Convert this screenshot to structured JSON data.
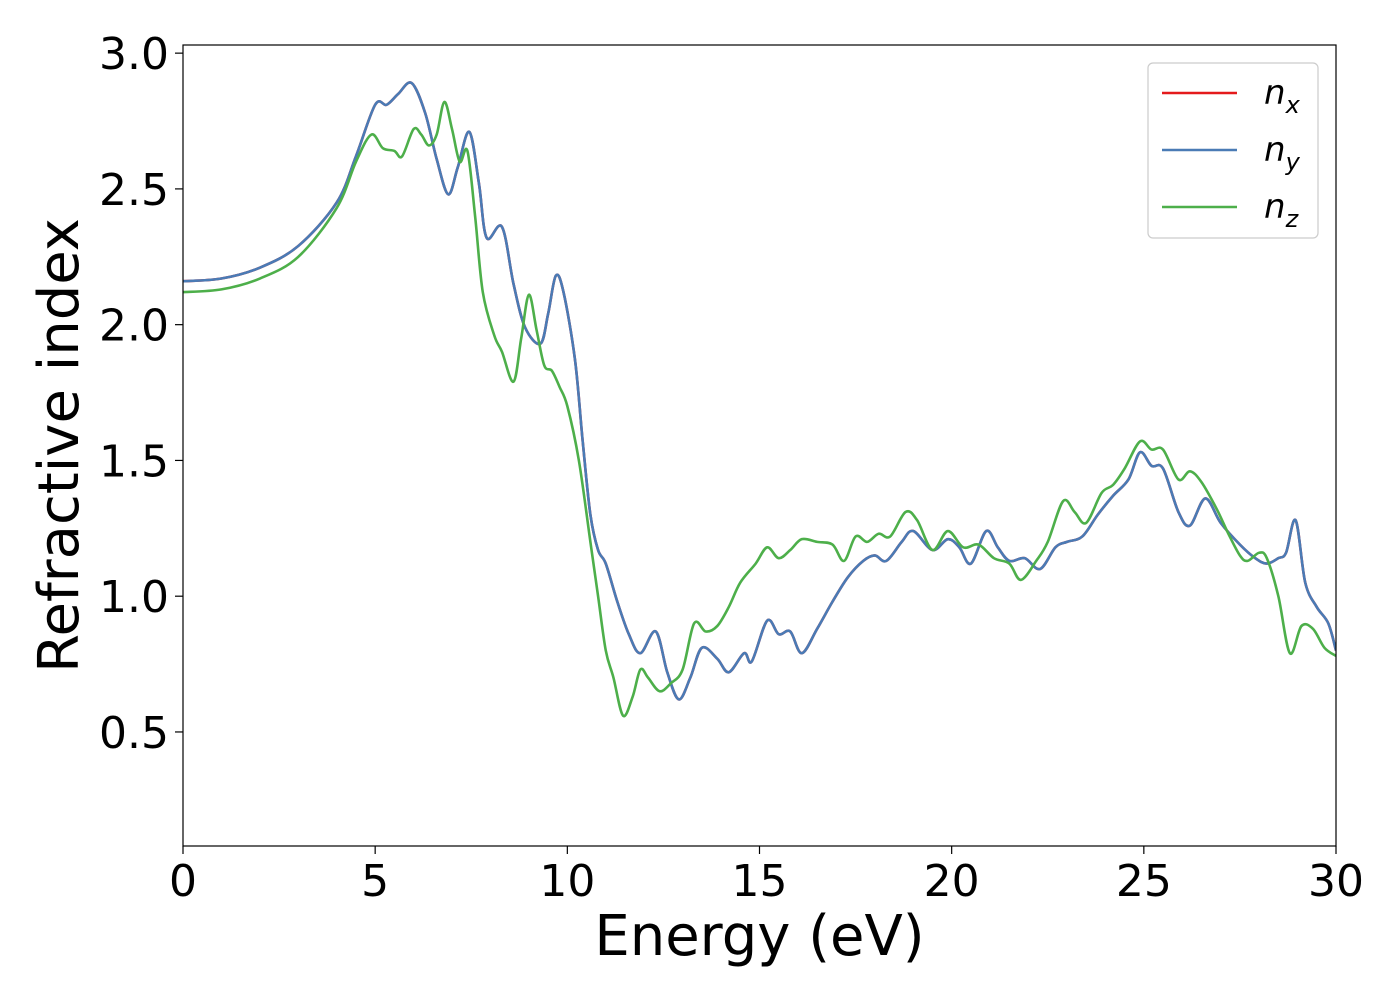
{
  "chart_data": {
    "type": "line",
    "title": "",
    "xlabel": "Energy (eV)",
    "ylabel": "Refractive index",
    "xlim": [
      0,
      30
    ],
    "ylim": [
      0.08,
      3.03
    ],
    "xticks": [
      0,
      5,
      10,
      15,
      20,
      25,
      30
    ],
    "yticks": [
      0.5,
      1.0,
      1.5,
      2.0,
      2.5,
      3.0
    ],
    "xtick_labels": [
      "0",
      "5",
      "10",
      "15",
      "20",
      "25",
      "30"
    ],
    "ytick_labels": [
      "0.5",
      "1.0",
      "1.5",
      "2.0",
      "2.5",
      "3.0"
    ],
    "grid": false,
    "legend_position": "top-right",
    "series": [
      {
        "name": "n",
        "subscript": "x",
        "color": "#e41a1c",
        "points": [
          [
            0,
            2.16
          ],
          [
            1,
            2.17
          ],
          [
            2,
            2.21
          ],
          [
            3,
            2.29
          ],
          [
            4,
            2.45
          ],
          [
            4.5,
            2.62
          ],
          [
            5,
            2.81
          ],
          [
            5.3,
            2.81
          ],
          [
            5.6,
            2.85
          ],
          [
            5.95,
            2.89
          ],
          [
            6.3,
            2.78
          ],
          [
            6.6,
            2.61
          ],
          [
            6.9,
            2.48
          ],
          [
            7.15,
            2.58
          ],
          [
            7.45,
            2.71
          ],
          [
            7.7,
            2.52
          ],
          [
            7.9,
            2.32
          ],
          [
            8.3,
            2.36
          ],
          [
            8.6,
            2.15
          ],
          [
            8.9,
            1.99
          ],
          [
            9.3,
            1.93
          ],
          [
            9.5,
            2.04
          ],
          [
            9.7,
            2.18
          ],
          [
            9.9,
            2.12
          ],
          [
            10.2,
            1.87
          ],
          [
            10.4,
            1.57
          ],
          [
            10.6,
            1.3
          ],
          [
            10.8,
            1.17
          ],
          [
            11.0,
            1.12
          ],
          [
            11.3,
            0.98
          ],
          [
            11.6,
            0.86
          ],
          [
            11.9,
            0.79
          ],
          [
            12.3,
            0.87
          ],
          [
            12.6,
            0.72
          ],
          [
            12.9,
            0.62
          ],
          [
            13.2,
            0.7
          ],
          [
            13.5,
            0.81
          ],
          [
            13.9,
            0.77
          ],
          [
            14.2,
            0.72
          ],
          [
            14.6,
            0.79
          ],
          [
            14.8,
            0.76
          ],
          [
            15.2,
            0.91
          ],
          [
            15.5,
            0.86
          ],
          [
            15.8,
            0.87
          ],
          [
            16.1,
            0.79
          ],
          [
            16.5,
            0.88
          ],
          [
            16.9,
            0.98
          ],
          [
            17.3,
            1.07
          ],
          [
            17.7,
            1.13
          ],
          [
            18.0,
            1.15
          ],
          [
            18.3,
            1.13
          ],
          [
            18.7,
            1.2
          ],
          [
            19.0,
            1.24
          ],
          [
            19.5,
            1.17
          ],
          [
            19.9,
            1.21
          ],
          [
            20.2,
            1.18
          ],
          [
            20.5,
            1.12
          ],
          [
            20.9,
            1.24
          ],
          [
            21.2,
            1.18
          ],
          [
            21.5,
            1.13
          ],
          [
            21.9,
            1.14
          ],
          [
            22.3,
            1.1
          ],
          [
            22.7,
            1.18
          ],
          [
            23.0,
            1.2
          ],
          [
            23.4,
            1.22
          ],
          [
            23.8,
            1.3
          ],
          [
            24.2,
            1.37
          ],
          [
            24.6,
            1.43
          ],
          [
            24.9,
            1.53
          ],
          [
            25.2,
            1.48
          ],
          [
            25.5,
            1.47
          ],
          [
            25.9,
            1.31
          ],
          [
            26.2,
            1.26
          ],
          [
            26.6,
            1.36
          ],
          [
            27.0,
            1.27
          ],
          [
            27.5,
            1.19
          ],
          [
            27.9,
            1.14
          ],
          [
            28.2,
            1.12
          ],
          [
            28.5,
            1.14
          ],
          [
            28.7,
            1.16
          ],
          [
            28.95,
            1.28
          ],
          [
            29.2,
            1.05
          ],
          [
            29.5,
            0.96
          ],
          [
            29.8,
            0.9
          ],
          [
            30,
            0.8
          ]
        ]
      },
      {
        "name": "n",
        "subscript": "y",
        "color": "#4a7bb5",
        "points": [
          [
            0,
            2.16
          ],
          [
            1,
            2.17
          ],
          [
            2,
            2.21
          ],
          [
            3,
            2.29
          ],
          [
            4,
            2.45
          ],
          [
            4.5,
            2.62
          ],
          [
            5,
            2.81
          ],
          [
            5.3,
            2.81
          ],
          [
            5.6,
            2.85
          ],
          [
            5.95,
            2.89
          ],
          [
            6.3,
            2.78
          ],
          [
            6.6,
            2.61
          ],
          [
            6.9,
            2.48
          ],
          [
            7.15,
            2.58
          ],
          [
            7.45,
            2.71
          ],
          [
            7.7,
            2.52
          ],
          [
            7.9,
            2.32
          ],
          [
            8.3,
            2.36
          ],
          [
            8.6,
            2.15
          ],
          [
            8.9,
            1.99
          ],
          [
            9.3,
            1.93
          ],
          [
            9.5,
            2.04
          ],
          [
            9.7,
            2.18
          ],
          [
            9.9,
            2.12
          ],
          [
            10.2,
            1.87
          ],
          [
            10.4,
            1.57
          ],
          [
            10.6,
            1.3
          ],
          [
            10.8,
            1.17
          ],
          [
            11.0,
            1.12
          ],
          [
            11.3,
            0.98
          ],
          [
            11.6,
            0.86
          ],
          [
            11.9,
            0.79
          ],
          [
            12.3,
            0.87
          ],
          [
            12.6,
            0.72
          ],
          [
            12.9,
            0.62
          ],
          [
            13.2,
            0.7
          ],
          [
            13.5,
            0.81
          ],
          [
            13.9,
            0.77
          ],
          [
            14.2,
            0.72
          ],
          [
            14.6,
            0.79
          ],
          [
            14.8,
            0.76
          ],
          [
            15.2,
            0.91
          ],
          [
            15.5,
            0.86
          ],
          [
            15.8,
            0.87
          ],
          [
            16.1,
            0.79
          ],
          [
            16.5,
            0.88
          ],
          [
            16.9,
            0.98
          ],
          [
            17.3,
            1.07
          ],
          [
            17.7,
            1.13
          ],
          [
            18.0,
            1.15
          ],
          [
            18.3,
            1.13
          ],
          [
            18.7,
            1.2
          ],
          [
            19.0,
            1.24
          ],
          [
            19.5,
            1.17
          ],
          [
            19.9,
            1.21
          ],
          [
            20.2,
            1.18
          ],
          [
            20.5,
            1.12
          ],
          [
            20.9,
            1.24
          ],
          [
            21.2,
            1.18
          ],
          [
            21.5,
            1.13
          ],
          [
            21.9,
            1.14
          ],
          [
            22.3,
            1.1
          ],
          [
            22.7,
            1.18
          ],
          [
            23.0,
            1.2
          ],
          [
            23.4,
            1.22
          ],
          [
            23.8,
            1.3
          ],
          [
            24.2,
            1.37
          ],
          [
            24.6,
            1.43
          ],
          [
            24.9,
            1.53
          ],
          [
            25.2,
            1.48
          ],
          [
            25.5,
            1.47
          ],
          [
            25.9,
            1.31
          ],
          [
            26.2,
            1.26
          ],
          [
            26.6,
            1.36
          ],
          [
            27.0,
            1.27
          ],
          [
            27.5,
            1.19
          ],
          [
            27.9,
            1.14
          ],
          [
            28.2,
            1.12
          ],
          [
            28.5,
            1.14
          ],
          [
            28.7,
            1.16
          ],
          [
            28.95,
            1.28
          ],
          [
            29.2,
            1.05
          ],
          [
            29.5,
            0.96
          ],
          [
            29.8,
            0.9
          ],
          [
            30,
            0.8
          ]
        ]
      },
      {
        "name": "n",
        "subscript": "z",
        "color": "#4daf4a",
        "points": [
          [
            0,
            2.12
          ],
          [
            1,
            2.13
          ],
          [
            2,
            2.17
          ],
          [
            3,
            2.25
          ],
          [
            4,
            2.43
          ],
          [
            4.5,
            2.6
          ],
          [
            4.9,
            2.7
          ],
          [
            5.2,
            2.65
          ],
          [
            5.5,
            2.64
          ],
          [
            5.7,
            2.62
          ],
          [
            6.0,
            2.72
          ],
          [
            6.2,
            2.7
          ],
          [
            6.4,
            2.66
          ],
          [
            6.6,
            2.7
          ],
          [
            6.8,
            2.82
          ],
          [
            7.0,
            2.72
          ],
          [
            7.2,
            2.6
          ],
          [
            7.4,
            2.64
          ],
          [
            7.6,
            2.4
          ],
          [
            7.8,
            2.12
          ],
          [
            8.1,
            1.96
          ],
          [
            8.3,
            1.9
          ],
          [
            8.6,
            1.79
          ],
          [
            8.8,
            1.95
          ],
          [
            9.0,
            2.11
          ],
          [
            9.2,
            1.98
          ],
          [
            9.4,
            1.85
          ],
          [
            9.6,
            1.83
          ],
          [
            9.8,
            1.77
          ],
          [
            10.0,
            1.7
          ],
          [
            10.3,
            1.5
          ],
          [
            10.6,
            1.2
          ],
          [
            10.8,
            1.0
          ],
          [
            11.0,
            0.8
          ],
          [
            11.2,
            0.7
          ],
          [
            11.45,
            0.56
          ],
          [
            11.7,
            0.63
          ],
          [
            11.9,
            0.73
          ],
          [
            12.1,
            0.7
          ],
          [
            12.4,
            0.65
          ],
          [
            12.7,
            0.68
          ],
          [
            13.0,
            0.73
          ],
          [
            13.3,
            0.9
          ],
          [
            13.6,
            0.87
          ],
          [
            13.9,
            0.89
          ],
          [
            14.2,
            0.96
          ],
          [
            14.5,
            1.05
          ],
          [
            14.9,
            1.12
          ],
          [
            15.2,
            1.18
          ],
          [
            15.5,
            1.14
          ],
          [
            15.8,
            1.17
          ],
          [
            16.1,
            1.21
          ],
          [
            16.5,
            1.2
          ],
          [
            16.9,
            1.19
          ],
          [
            17.2,
            1.13
          ],
          [
            17.5,
            1.22
          ],
          [
            17.8,
            1.2
          ],
          [
            18.1,
            1.23
          ],
          [
            18.4,
            1.22
          ],
          [
            18.8,
            1.31
          ],
          [
            19.1,
            1.28
          ],
          [
            19.5,
            1.17
          ],
          [
            19.9,
            1.24
          ],
          [
            20.3,
            1.18
          ],
          [
            20.7,
            1.19
          ],
          [
            21.1,
            1.14
          ],
          [
            21.5,
            1.12
          ],
          [
            21.8,
            1.06
          ],
          [
            22.2,
            1.13
          ],
          [
            22.5,
            1.2
          ],
          [
            22.9,
            1.35
          ],
          [
            23.2,
            1.31
          ],
          [
            23.5,
            1.27
          ],
          [
            23.9,
            1.38
          ],
          [
            24.2,
            1.41
          ],
          [
            24.5,
            1.47
          ],
          [
            24.9,
            1.57
          ],
          [
            25.2,
            1.54
          ],
          [
            25.5,
            1.54
          ],
          [
            25.9,
            1.43
          ],
          [
            26.2,
            1.46
          ],
          [
            26.5,
            1.42
          ],
          [
            26.9,
            1.32
          ],
          [
            27.2,
            1.23
          ],
          [
            27.5,
            1.15
          ],
          [
            27.7,
            1.13
          ],
          [
            28.0,
            1.16
          ],
          [
            28.2,
            1.14
          ],
          [
            28.5,
            1.0
          ],
          [
            28.8,
            0.79
          ],
          [
            29.1,
            0.89
          ],
          [
            29.4,
            0.88
          ],
          [
            29.7,
            0.81
          ],
          [
            30,
            0.78
          ]
        ]
      }
    ]
  }
}
